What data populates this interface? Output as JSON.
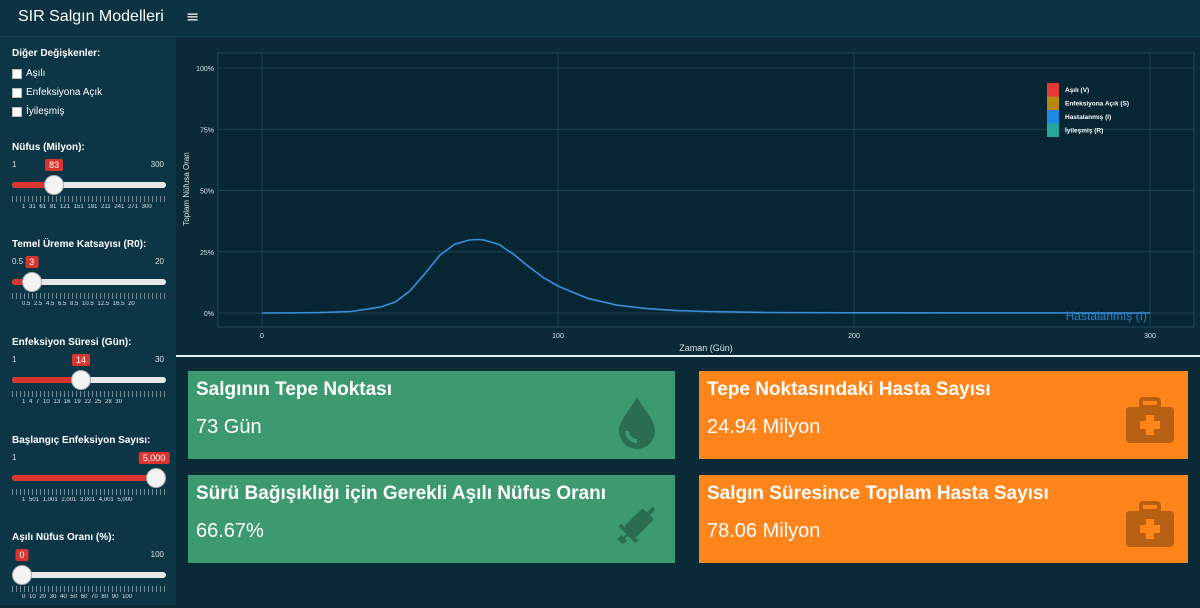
{
  "header": {
    "app_title": "SIR Salgın Modelleri",
    "menu_icon": "≡"
  },
  "sidebar": {
    "other_vars_title": "Diğer Değişkenler:",
    "checkboxes": [
      {
        "label": "Aşılı",
        "checked": false
      },
      {
        "label": "Enfeksiyona Açık",
        "checked": false
      },
      {
        "label": "İyileşmiş",
        "checked": false
      }
    ],
    "sliders": [
      {
        "label": "Nüfus (Milyon):",
        "min": "1",
        "max": "300",
        "value": "83",
        "fraction": 0.274,
        "ticks": "1   31   61   91   121  151  181  211  241  271  300"
      },
      {
        "label": "Temel Üreme Katsayısı (R0):",
        "min": "0.5",
        "max": "20",
        "value": "3",
        "fraction": 0.128,
        "ticks": "0.5  2.5  4.5  6.5  8.5  10.5 12.5     16.5      20"
      },
      {
        "label": "Enfeksiyon Süresi (Gün):",
        "min": "1",
        "max": "30",
        "value": "14",
        "fraction": 0.448,
        "ticks": "1   4   7   10  13  16  19  22  25  28 30"
      },
      {
        "label": "Başlangıç Enfeksiyon Sayısı:",
        "min": "1",
        "max": "",
        "value": "5,000",
        "fraction": 1.0,
        "ticks": "1   501 1,001   2,001   3,001   4,001   5,000"
      },
      {
        "label": "Aşılı Nüfus Oranı (%):",
        "min": "",
        "max": "100",
        "value": "0",
        "fraction": 0.0,
        "ticks": "0  10  20  30  40  50  60  70  80  90  100"
      }
    ]
  },
  "chart_data": {
    "type": "line",
    "xlabel": "Zaman (Gün)",
    "ylabel": "Toplam Nüfusa Oran",
    "xlim": [
      0,
      300
    ],
    "ylim": [
      0,
      1
    ],
    "x_ticks": [
      "0",
      "100",
      "200",
      "300"
    ],
    "y_ticks": [
      "0%",
      "25%",
      "50%",
      "75%",
      "100%"
    ],
    "grid": true,
    "legend_position": "top-right",
    "legend": [
      {
        "name": "Aşılı (V)",
        "color": "#e53935"
      },
      {
        "name": "Enfeksiyona Açık (S)",
        "color": "#b8860b"
      },
      {
        "name": "Hastalanmış (I)",
        "color": "#1e88e5"
      },
      {
        "name": "İyileşmiş (R)",
        "color": "#26a69a"
      }
    ],
    "series": [
      {
        "name": "Hastalanmış (I)",
        "color": "#3a8fd9",
        "x": [
          0,
          10,
          20,
          30,
          40,
          45,
          50,
          55,
          60,
          65,
          70,
          73,
          75,
          80,
          85,
          90,
          95,
          100,
          110,
          120,
          130,
          140,
          150,
          170,
          200,
          250,
          300
        ],
        "y": [
          0.0,
          0.0006,
          0.002,
          0.006,
          0.024,
          0.045,
          0.09,
          0.16,
          0.235,
          0.28,
          0.298,
          0.3,
          0.298,
          0.28,
          0.24,
          0.19,
          0.145,
          0.11,
          0.06,
          0.032,
          0.018,
          0.01,
          0.006,
          0.002,
          0.001,
          0.0003,
          0.0001
        ]
      }
    ]
  },
  "value_boxes": [
    {
      "title": "Salgının Tepe Noktası",
      "value": "73 Gün",
      "color": "#3d9970",
      "icon": "tint-icon"
    },
    {
      "title": "Tepe Noktasındaki Hasta Sayısı",
      "value": "24.94 Milyon",
      "color": "#ff851b",
      "icon": "medkit-icon"
    },
    {
      "title": "Sürü Bağışıklığı için Gerekli Aşılı Nüfus Oranı",
      "value": "66.67%",
      "color": "#3d9970",
      "icon": "syringe-icon"
    },
    {
      "title": "Salgın Süresince Toplam Hasta Sayısı",
      "value": "78.06 Milyon",
      "color": "#ff851b",
      "icon": "medkit-icon"
    }
  ]
}
